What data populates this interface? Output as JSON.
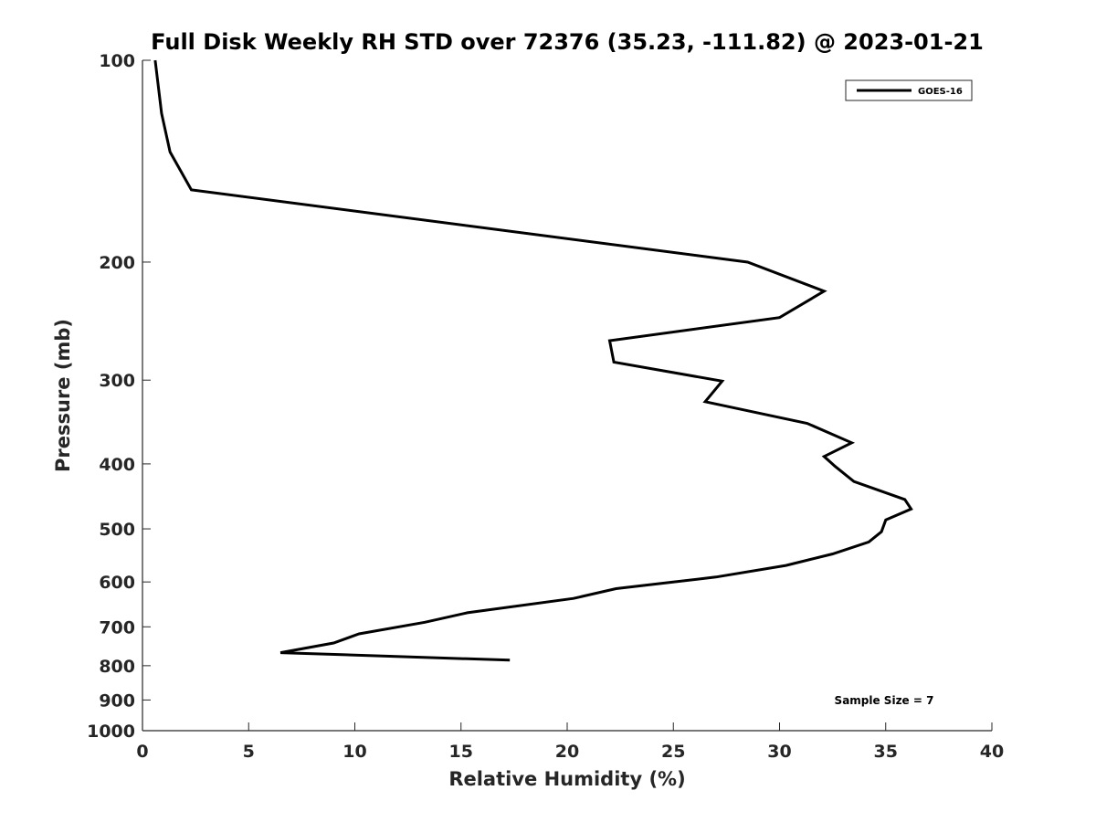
{
  "chart_data": {
    "type": "line",
    "title": "Full Disk Weekly RH STD over 72376 (35.23, -111.82) @ 2023-01-21",
    "xlabel": "Relative Humidity (%)",
    "ylabel": "Pressure (mb)",
    "xlim": [
      0,
      40
    ],
    "ylim": [
      100,
      1000
    ],
    "yscale": "log",
    "y_reversed": true,
    "grid": false,
    "legend_position": "top-right",
    "x_ticks": [
      "0",
      "5",
      "10",
      "15",
      "20",
      "25",
      "30",
      "35",
      "40"
    ],
    "x_tick_values": [
      0,
      5,
      10,
      15,
      20,
      25,
      30,
      35,
      40
    ],
    "y_ticks": [
      "100",
      "200",
      "300",
      "400",
      "500",
      "600",
      "700",
      "800",
      "900",
      "1000"
    ],
    "y_tick_values": [
      100,
      200,
      300,
      400,
      500,
      600,
      700,
      800,
      900,
      1000
    ],
    "annotation": "Sample Size = 7",
    "series": [
      {
        "name": "GOES-16",
        "color": "#000000",
        "x": [
          0.6,
          0.9,
          1.3,
          2.3,
          28.5,
          32.1,
          30.0,
          22.0,
          22.2,
          27.3,
          26.5,
          31.3,
          33.4,
          32.1,
          32.6,
          33.5,
          35.9,
          36.2,
          35.0,
          34.8,
          34.2,
          32.5,
          30.3,
          27.0,
          22.3,
          20.3,
          15.3,
          13.3,
          10.2,
          9.0,
          6.5,
          17.3
        ],
        "y": [
          100,
          120,
          137,
          156,
          200,
          221,
          242,
          262,
          282,
          301,
          323,
          348,
          372,
          390,
          403,
          425,
          452,
          467,
          485,
          505,
          523,
          545,
          567,
          590,
          614,
          635,
          667,
          689,
          717,
          740,
          765,
          785
        ]
      }
    ]
  }
}
